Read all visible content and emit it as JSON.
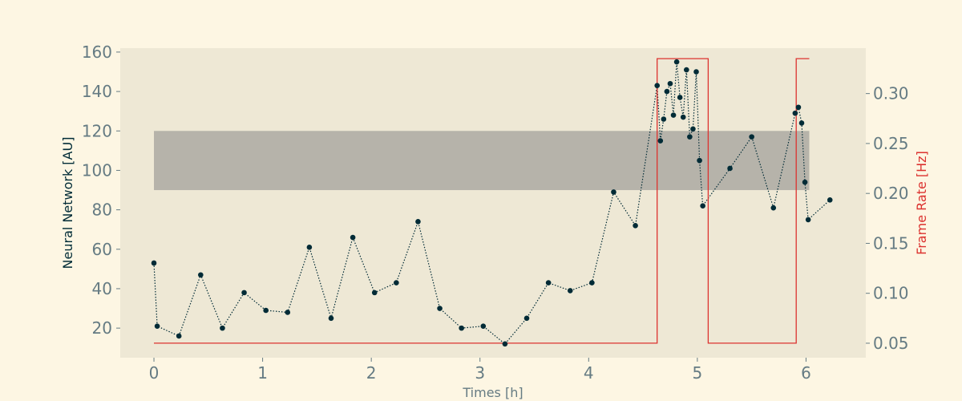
{
  "chart_data": {
    "type": "line",
    "xlabel": "Times [h]",
    "ylabel": "Neural Network [AU]",
    "y2label": "Frame Rate [Hz]",
    "xlim": [
      -0.31,
      6.55
    ],
    "ylim": [
      5,
      162
    ],
    "y2lim": [
      0.0355,
      0.3455
    ],
    "xticks": [
      0,
      1,
      2,
      3,
      4,
      5,
      6
    ],
    "yticks": [
      20,
      40,
      60,
      80,
      100,
      120,
      140,
      160
    ],
    "y2ticks": [
      0.05,
      0.1,
      0.15,
      0.2,
      0.25,
      0.3
    ],
    "y2tick_labels": [
      "0.05",
      "0.10",
      "0.15",
      "0.20",
      "0.25",
      "0.30"
    ],
    "grid": false,
    "band": {
      "x": [
        0,
        6.03
      ],
      "y": [
        90,
        120
      ],
      "color": "#b6b3aa"
    },
    "series": [
      {
        "axis": "left",
        "style": "dotted-markers",
        "color": "#002b36",
        "x": [
          0,
          0.03,
          0.23,
          0.43,
          0.63,
          0.83,
          1.03,
          1.23,
          1.43,
          1.63,
          1.83,
          2.03,
          2.23,
          2.43,
          2.63,
          2.83,
          3.03,
          3.23,
          3.43,
          3.63,
          3.83,
          4.03,
          4.23,
          4.43,
          4.63,
          4.66,
          4.69,
          4.72,
          4.75,
          4.78,
          4.81,
          4.84,
          4.87,
          4.9,
          4.93,
          4.96,
          4.99,
          5.02,
          5.05,
          5.3,
          5.5,
          5.7,
          5.9,
          5.93,
          5.96,
          5.99,
          6.02,
          6.22
        ],
        "y": [
          53,
          21,
          16,
          47,
          20,
          38,
          29,
          28,
          61,
          25,
          66,
          38,
          43,
          74,
          30,
          20,
          21,
          12,
          25,
          43,
          39,
          43,
          89,
          72,
          143,
          115,
          126,
          140,
          144,
          128,
          155,
          137,
          127,
          151,
          117,
          121,
          150,
          105,
          82,
          101,
          117,
          81,
          129,
          132,
          124,
          94,
          75,
          85
        ]
      },
      {
        "axis": "right",
        "style": "step",
        "color": "#dc322f",
        "x": [
          0,
          4.63,
          4.63,
          5.1,
          5.1,
          5.91,
          5.91,
          6.03
        ],
        "y": [
          0.05,
          0.05,
          0.335,
          0.335,
          0.05,
          0.05,
          0.335,
          0.335
        ]
      }
    ]
  },
  "colors": {
    "background": "#fdf6e3",
    "plot_area": "#eee8d5",
    "tick": "#657b83",
    "axis_text": "#002b36",
    "accent_red": "#dc322f"
  }
}
